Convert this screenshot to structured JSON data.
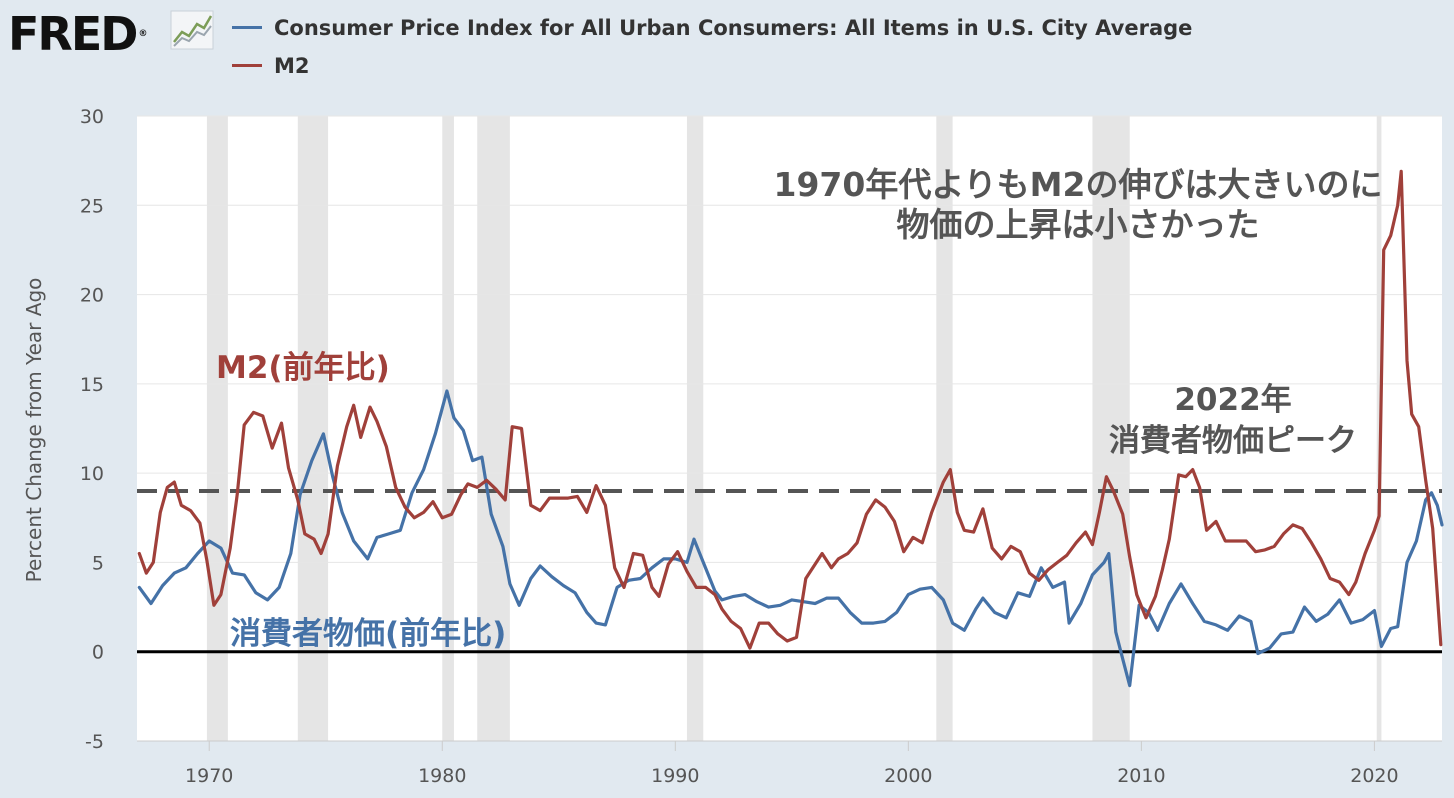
{
  "header": {
    "logo_text": "FRED",
    "logo_mark": "®",
    "logo_icon": "line-graph-icon"
  },
  "colors": {
    "background": "#e1e9f0",
    "plot_background": "#ffffff",
    "cpi_line": "#4572a7",
    "m2_line": "#a0403a",
    "recession_band": "#e5e5e5",
    "reference_line": "#555555",
    "zero_line": "#000000",
    "annotation_gray": "#555555"
  },
  "chart_data": {
    "type": "line",
    "title": "",
    "xlabel": "",
    "ylabel": "Percent Change from Year Ago",
    "xlim": [
      1966.9,
      2022.9
    ],
    "ylim": [
      -5,
      30
    ],
    "yticks": [
      -5,
      0,
      5,
      10,
      15,
      20,
      25,
      30
    ],
    "xticks": [
      1970,
      1980,
      1990,
      2000,
      2010,
      2020
    ],
    "grid": "horizontal",
    "legend_position": "top",
    "recessions": [
      [
        1969.9,
        1970.8
      ],
      [
        1973.8,
        1975.1
      ],
      [
        1980.0,
        1980.5
      ],
      [
        1981.5,
        1982.9
      ],
      [
        1990.5,
        1991.2
      ],
      [
        2001.2,
        2001.9
      ],
      [
        2007.9,
        2009.5
      ],
      [
        2020.1,
        2020.3
      ]
    ],
    "reference_lines": [
      {
        "y": 9,
        "style": "dashed"
      },
      {
        "y": 0,
        "style": "solid"
      }
    ],
    "series": [
      {
        "name": "Consumer Price Index for All Urban Consumers: All Items in U.S. City Average",
        "color": "#4572a7",
        "points": [
          [
            1967.0,
            3.6
          ],
          [
            1967.5,
            2.7
          ],
          [
            1968.0,
            3.7
          ],
          [
            1968.5,
            4.4
          ],
          [
            1969.0,
            4.7
          ],
          [
            1969.5,
            5.5
          ],
          [
            1970.0,
            6.2
          ],
          [
            1970.5,
            5.8
          ],
          [
            1971.0,
            4.4
          ],
          [
            1971.5,
            4.3
          ],
          [
            1972.0,
            3.3
          ],
          [
            1972.5,
            2.9
          ],
          [
            1973.0,
            3.6
          ],
          [
            1973.5,
            5.5
          ],
          [
            1973.9,
            8.8
          ],
          [
            1974.4,
            10.7
          ],
          [
            1974.9,
            12.2
          ],
          [
            1975.3,
            9.8
          ],
          [
            1975.7,
            7.8
          ],
          [
            1976.2,
            6.2
          ],
          [
            1976.8,
            5.2
          ],
          [
            1977.2,
            6.4
          ],
          [
            1977.7,
            6.6
          ],
          [
            1978.2,
            6.8
          ],
          [
            1978.7,
            8.9
          ],
          [
            1979.2,
            10.2
          ],
          [
            1979.7,
            12.2
          ],
          [
            1980.2,
            14.6
          ],
          [
            1980.5,
            13.1
          ],
          [
            1980.9,
            12.4
          ],
          [
            1981.3,
            10.7
          ],
          [
            1981.7,
            10.9
          ],
          [
            1982.1,
            7.7
          ],
          [
            1982.6,
            5.9
          ],
          [
            1982.9,
            3.8
          ],
          [
            1983.3,
            2.6
          ],
          [
            1983.8,
            4.1
          ],
          [
            1984.2,
            4.8
          ],
          [
            1984.7,
            4.2
          ],
          [
            1985.2,
            3.7
          ],
          [
            1985.7,
            3.3
          ],
          [
            1986.2,
            2.2
          ],
          [
            1986.6,
            1.6
          ],
          [
            1987.0,
            1.5
          ],
          [
            1987.5,
            3.6
          ],
          [
            1988.0,
            4.0
          ],
          [
            1988.5,
            4.1
          ],
          [
            1989.0,
            4.7
          ],
          [
            1989.5,
            5.2
          ],
          [
            1990.0,
            5.2
          ],
          [
            1990.5,
            5.0
          ],
          [
            1990.8,
            6.3
          ],
          [
            1991.2,
            5.0
          ],
          [
            1991.7,
            3.4
          ],
          [
            1992.0,
            2.9
          ],
          [
            1992.5,
            3.1
          ],
          [
            1993.0,
            3.2
          ],
          [
            1993.5,
            2.8
          ],
          [
            1994.0,
            2.5
          ],
          [
            1994.5,
            2.6
          ],
          [
            1995.0,
            2.9
          ],
          [
            1995.5,
            2.8
          ],
          [
            1996.0,
            2.7
          ],
          [
            1996.5,
            3.0
          ],
          [
            1997.0,
            3.0
          ],
          [
            1997.5,
            2.2
          ],
          [
            1998.0,
            1.6
          ],
          [
            1998.5,
            1.6
          ],
          [
            1999.0,
            1.7
          ],
          [
            1999.5,
            2.2
          ],
          [
            2000.0,
            3.2
          ],
          [
            2000.5,
            3.5
          ],
          [
            2001.0,
            3.6
          ],
          [
            2001.5,
            2.9
          ],
          [
            2001.9,
            1.6
          ],
          [
            2002.4,
            1.2
          ],
          [
            2002.9,
            2.4
          ],
          [
            2003.2,
            3.0
          ],
          [
            2003.7,
            2.2
          ],
          [
            2004.2,
            1.9
          ],
          [
            2004.7,
            3.3
          ],
          [
            2005.2,
            3.1
          ],
          [
            2005.7,
            4.7
          ],
          [
            2006.2,
            3.6
          ],
          [
            2006.7,
            3.9
          ],
          [
            2006.9,
            1.6
          ],
          [
            2007.4,
            2.7
          ],
          [
            2007.9,
            4.3
          ],
          [
            2008.4,
            5.0
          ],
          [
            2008.6,
            5.5
          ],
          [
            2008.9,
            1.1
          ],
          [
            2009.2,
            -0.4
          ],
          [
            2009.5,
            -1.9
          ],
          [
            2009.9,
            2.6
          ],
          [
            2010.3,
            2.2
          ],
          [
            2010.7,
            1.2
          ],
          [
            2011.2,
            2.7
          ],
          [
            2011.7,
            3.8
          ],
          [
            2012.2,
            2.7
          ],
          [
            2012.7,
            1.7
          ],
          [
            2013.2,
            1.5
          ],
          [
            2013.7,
            1.2
          ],
          [
            2014.2,
            2.0
          ],
          [
            2014.7,
            1.7
          ],
          [
            2015.0,
            -0.1
          ],
          [
            2015.5,
            0.2
          ],
          [
            2016.0,
            1.0
          ],
          [
            2016.5,
            1.1
          ],
          [
            2017.0,
            2.5
          ],
          [
            2017.5,
            1.7
          ],
          [
            2018.0,
            2.1
          ],
          [
            2018.5,
            2.9
          ],
          [
            2019.0,
            1.6
          ],
          [
            2019.5,
            1.8
          ],
          [
            2020.0,
            2.3
          ],
          [
            2020.3,
            0.3
          ],
          [
            2020.7,
            1.3
          ],
          [
            2021.0,
            1.4
          ],
          [
            2021.4,
            5.0
          ],
          [
            2021.8,
            6.2
          ],
          [
            2022.2,
            8.5
          ],
          [
            2022.45,
            8.9
          ],
          [
            2022.7,
            8.2
          ],
          [
            2022.9,
            7.1
          ]
        ]
      },
      {
        "name": "M2",
        "color": "#a0403a",
        "points": [
          [
            1967.0,
            5.5
          ],
          [
            1967.3,
            4.4
          ],
          [
            1967.6,
            5.0
          ],
          [
            1967.9,
            7.8
          ],
          [
            1968.2,
            9.2
          ],
          [
            1968.5,
            9.5
          ],
          [
            1968.8,
            8.2
          ],
          [
            1969.2,
            7.9
          ],
          [
            1969.6,
            7.2
          ],
          [
            1969.9,
            5.1
          ],
          [
            1970.2,
            2.6
          ],
          [
            1970.5,
            3.2
          ],
          [
            1970.9,
            5.8
          ],
          [
            1971.2,
            8.8
          ],
          [
            1971.5,
            12.7
          ],
          [
            1971.9,
            13.4
          ],
          [
            1972.3,
            13.2
          ],
          [
            1972.7,
            11.4
          ],
          [
            1973.1,
            12.8
          ],
          [
            1973.4,
            10.3
          ],
          [
            1973.8,
            8.5
          ],
          [
            1974.1,
            6.6
          ],
          [
            1974.5,
            6.3
          ],
          [
            1974.8,
            5.5
          ],
          [
            1975.1,
            6.6
          ],
          [
            1975.5,
            10.4
          ],
          [
            1975.9,
            12.6
          ],
          [
            1976.2,
            13.8
          ],
          [
            1976.5,
            12.0
          ],
          [
            1976.9,
            13.7
          ],
          [
            1977.2,
            12.9
          ],
          [
            1977.6,
            11.5
          ],
          [
            1978.0,
            9.2
          ],
          [
            1978.4,
            8.1
          ],
          [
            1978.8,
            7.5
          ],
          [
            1979.2,
            7.8
          ],
          [
            1979.6,
            8.4
          ],
          [
            1980.0,
            7.5
          ],
          [
            1980.4,
            7.7
          ],
          [
            1980.8,
            8.8
          ],
          [
            1981.1,
            9.4
          ],
          [
            1981.5,
            9.2
          ],
          [
            1981.9,
            9.6
          ],
          [
            1982.3,
            9.1
          ],
          [
            1982.7,
            8.5
          ],
          [
            1983.0,
            12.6
          ],
          [
            1983.4,
            12.5
          ],
          [
            1983.8,
            8.2
          ],
          [
            1984.2,
            7.9
          ],
          [
            1984.6,
            8.6
          ],
          [
            1985.0,
            8.6
          ],
          [
            1985.4,
            8.6
          ],
          [
            1985.8,
            8.7
          ],
          [
            1986.2,
            7.8
          ],
          [
            1986.6,
            9.3
          ],
          [
            1987.0,
            8.2
          ],
          [
            1987.4,
            4.7
          ],
          [
            1987.8,
            3.6
          ],
          [
            1988.2,
            5.5
          ],
          [
            1988.6,
            5.4
          ],
          [
            1989.0,
            3.6
          ],
          [
            1989.3,
            3.1
          ],
          [
            1989.7,
            4.9
          ],
          [
            1990.1,
            5.6
          ],
          [
            1990.5,
            4.5
          ],
          [
            1990.9,
            3.6
          ],
          [
            1991.3,
            3.6
          ],
          [
            1991.7,
            3.2
          ],
          [
            1992.0,
            2.4
          ],
          [
            1992.4,
            1.7
          ],
          [
            1992.8,
            1.3
          ],
          [
            1993.2,
            0.2
          ],
          [
            1993.6,
            1.6
          ],
          [
            1994.0,
            1.6
          ],
          [
            1994.4,
            1.0
          ],
          [
            1994.8,
            0.6
          ],
          [
            1995.2,
            0.8
          ],
          [
            1995.6,
            4.1
          ],
          [
            1996.0,
            4.9
          ],
          [
            1996.3,
            5.5
          ],
          [
            1996.7,
            4.7
          ],
          [
            1997.0,
            5.2
          ],
          [
            1997.4,
            5.5
          ],
          [
            1997.8,
            6.1
          ],
          [
            1998.2,
            7.7
          ],
          [
            1998.6,
            8.5
          ],
          [
            1999.0,
            8.1
          ],
          [
            1999.4,
            7.3
          ],
          [
            1999.8,
            5.6
          ],
          [
            2000.2,
            6.4
          ],
          [
            2000.6,
            6.1
          ],
          [
            2001.0,
            7.8
          ],
          [
            2001.5,
            9.5
          ],
          [
            2001.8,
            10.2
          ],
          [
            2002.1,
            7.8
          ],
          [
            2002.4,
            6.8
          ],
          [
            2002.8,
            6.7
          ],
          [
            2003.2,
            8.0
          ],
          [
            2003.6,
            5.8
          ],
          [
            2004.0,
            5.2
          ],
          [
            2004.4,
            5.9
          ],
          [
            2004.8,
            5.6
          ],
          [
            2005.2,
            4.4
          ],
          [
            2005.6,
            4.0
          ],
          [
            2006.0,
            4.6
          ],
          [
            2006.4,
            5.0
          ],
          [
            2006.8,
            5.4
          ],
          [
            2007.2,
            6.1
          ],
          [
            2007.6,
            6.7
          ],
          [
            2007.9,
            6.0
          ],
          [
            2008.2,
            7.8
          ],
          [
            2008.5,
            9.8
          ],
          [
            2008.8,
            9.0
          ],
          [
            2009.2,
            7.7
          ],
          [
            2009.5,
            5.3
          ],
          [
            2009.8,
            3.2
          ],
          [
            2010.2,
            1.9
          ],
          [
            2010.6,
            3.1
          ],
          [
            2010.9,
            4.6
          ],
          [
            2011.2,
            6.3
          ],
          [
            2011.6,
            9.9
          ],
          [
            2011.9,
            9.8
          ],
          [
            2012.2,
            10.2
          ],
          [
            2012.5,
            9.2
          ],
          [
            2012.8,
            6.8
          ],
          [
            2013.2,
            7.3
          ],
          [
            2013.6,
            6.2
          ],
          [
            2014.0,
            6.2
          ],
          [
            2014.5,
            6.2
          ],
          [
            2014.9,
            5.6
          ],
          [
            2015.3,
            5.7
          ],
          [
            2015.7,
            5.9
          ],
          [
            2016.1,
            6.6
          ],
          [
            2016.5,
            7.1
          ],
          [
            2016.9,
            6.9
          ],
          [
            2017.3,
            6.1
          ],
          [
            2017.7,
            5.2
          ],
          [
            2018.1,
            4.1
          ],
          [
            2018.5,
            3.9
          ],
          [
            2018.9,
            3.2
          ],
          [
            2019.2,
            3.9
          ],
          [
            2019.6,
            5.5
          ],
          [
            2020.0,
            6.8
          ],
          [
            2020.2,
            7.6
          ],
          [
            2020.4,
            22.5
          ],
          [
            2020.7,
            23.3
          ],
          [
            2021.0,
            25.0
          ],
          [
            2021.15,
            26.9
          ],
          [
            2021.4,
            16.3
          ],
          [
            2021.6,
            13.3
          ],
          [
            2021.9,
            12.6
          ],
          [
            2022.2,
            9.6
          ],
          [
            2022.5,
            6.9
          ],
          [
            2022.8,
            1.3
          ],
          [
            2022.85,
            0.4
          ]
        ]
      }
    ],
    "annotations": [
      {
        "id": "m2_label",
        "text": "M2(前年比)",
        "color": "#a0403a"
      },
      {
        "id": "cpi_label",
        "text": "消費者物価(前年比)",
        "color": "#4572a7"
      },
      {
        "id": "m2_note_line1",
        "text": "1970年代よりもM2の伸びは大きいのに",
        "color": "#555555"
      },
      {
        "id": "m2_note_line2",
        "text": "物価の上昇は小さかった",
        "color": "#555555"
      },
      {
        "id": "peak_line1",
        "text": "2022年",
        "color": "#555555"
      },
      {
        "id": "peak_line2",
        "text": "消費者物価ピーク",
        "color": "#555555"
      }
    ]
  }
}
